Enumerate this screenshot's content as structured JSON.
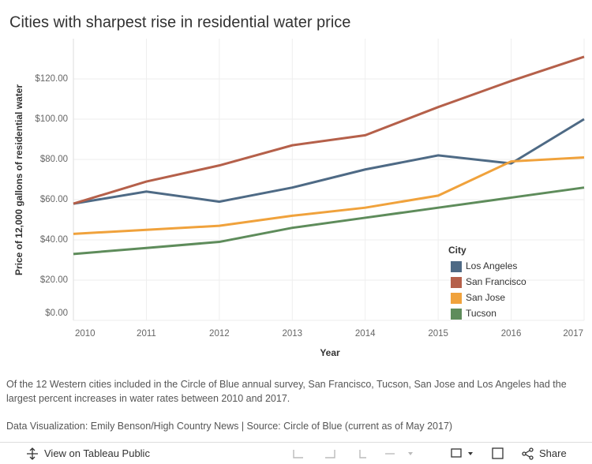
{
  "chart_data": {
    "type": "line",
    "title": "Cities with sharpest rise in residential water price",
    "x_label": "Year",
    "y_label": "Price of 12,000 gallons of residential water",
    "x": [
      2010,
      2011,
      2012,
      2013,
      2014,
      2015,
      2016,
      2017
    ],
    "xlim": [
      2010,
      2017
    ],
    "xticks": [
      2010,
      2011,
      2012,
      2013,
      2014,
      2015,
      2016,
      2017
    ],
    "ylim": [
      0,
      140
    ],
    "yticks": [
      {
        "value": 0,
        "label": "$0.00"
      },
      {
        "value": 20,
        "label": "$20.00"
      },
      {
        "value": 40,
        "label": "$40.00"
      },
      {
        "value": 60,
        "label": "$60.00"
      },
      {
        "value": 80,
        "label": "$80.00"
      },
      {
        "value": 100,
        "label": "$100.00"
      },
      {
        "value": 120,
        "label": "$120.00"
      }
    ],
    "grid": true,
    "legend_title": "City",
    "legend_position": "right",
    "series": [
      {
        "name": "Los Angeles",
        "color": "#4e6a85",
        "values": [
          58,
          64,
          59,
          66,
          75,
          82,
          78,
          100
        ]
      },
      {
        "name": "San Francisco",
        "color": "#b5604a",
        "values": [
          58,
          69,
          77,
          87,
          92,
          106,
          119,
          131
        ]
      },
      {
        "name": "San Jose",
        "color": "#f0a23c",
        "values": [
          43,
          45,
          47,
          52,
          56,
          62,
          79,
          81
        ]
      },
      {
        "name": "Tucson",
        "color": "#5e8c5b",
        "values": [
          33,
          36,
          39,
          46,
          51,
          56,
          61,
          66
        ]
      }
    ]
  },
  "caption": "Of the 12 Western cities included in the Circle of Blue annual survey, San Francisco, Tucson, San Jose and Los Angeles had the largest percent increases in water rates between 2010 and 2017.",
  "credit": "Data Visualization: Emily Benson/High Country News | Source: Circle of Blue (current as of May 2017)",
  "toolbar": {
    "view": "View on Tableau Public",
    "share": "Share"
  }
}
